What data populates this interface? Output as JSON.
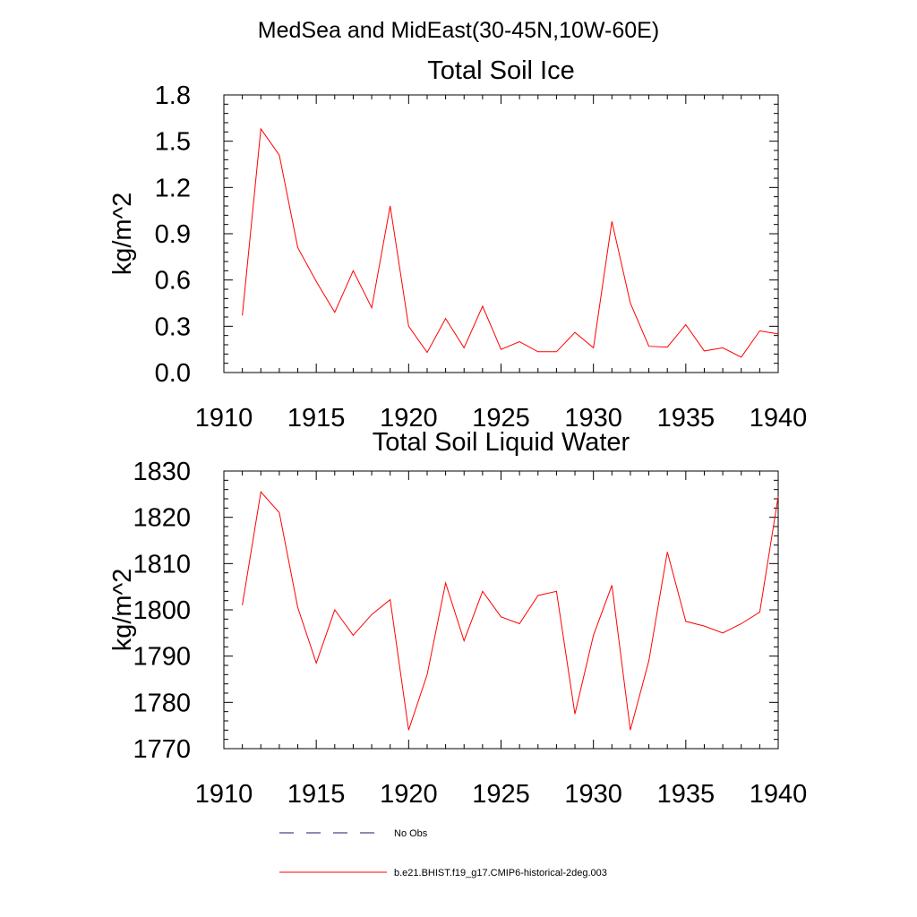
{
  "figure": {
    "title": "MedSea and MidEast(30-45N,10W-60E)"
  },
  "chart_data": [
    {
      "type": "line",
      "title": "Total Soil Ice",
      "xlabel": "",
      "ylabel": "kg/m^2",
      "xlim": [
        1910,
        1940
      ],
      "ylim": [
        0.0,
        1.8
      ],
      "xticks": [
        1910,
        1915,
        1920,
        1925,
        1930,
        1935,
        1940
      ],
      "yticks": [
        "0.0",
        "0.3",
        "0.6",
        "0.9",
        "1.2",
        "1.5",
        "1.8"
      ],
      "series": [
        {
          "name": "b.e21.BHIST.f19_g17.CMIP6-historical-2deg.003",
          "color": "#ff0000",
          "x": [
            1911,
            1912,
            1913,
            1914,
            1915,
            1916,
            1917,
            1918,
            1919,
            1920,
            1921,
            1922,
            1923,
            1924,
            1925,
            1926,
            1927,
            1928,
            1929,
            1930,
            1931,
            1932,
            1933,
            1934,
            1935,
            1936,
            1937,
            1938,
            1939,
            1940
          ],
          "values": [
            0.37,
            1.58,
            1.41,
            0.81,
            0.59,
            0.39,
            0.66,
            0.42,
            1.08,
            0.3,
            0.13,
            0.35,
            0.16,
            0.43,
            0.15,
            0.2,
            0.135,
            0.135,
            0.26,
            0.16,
            0.98,
            0.45,
            0.17,
            0.165,
            0.31,
            0.14,
            0.16,
            0.1,
            0.27,
            0.25
          ]
        }
      ]
    },
    {
      "type": "line",
      "title": "Total Soil Liquid Water",
      "xlabel": "",
      "ylabel": "kg/m^2",
      "xlim": [
        1910,
        1940
      ],
      "ylim": [
        1770,
        1830
      ],
      "xticks": [
        1910,
        1915,
        1920,
        1925,
        1930,
        1935,
        1940
      ],
      "yticks": [
        "1770",
        "1780",
        "1790",
        "1800",
        "1810",
        "1820",
        "1830"
      ],
      "series": [
        {
          "name": "b.e21.BHIST.f19_g17.CMIP6-historical-2deg.003",
          "color": "#ff0000",
          "x": [
            1911,
            1912,
            1913,
            1914,
            1915,
            1916,
            1917,
            1918,
            1919,
            1920,
            1921,
            1922,
            1923,
            1924,
            1925,
            1926,
            1927,
            1928,
            1929,
            1930,
            1931,
            1932,
            1933,
            1934,
            1935,
            1936,
            1937,
            1938,
            1939,
            1940
          ],
          "values": [
            1801,
            1825.5,
            1821,
            1800.5,
            1788.5,
            1800,
            1794.5,
            1799,
            1802.2,
            1774,
            1786,
            1805.8,
            1793.3,
            1804,
            1798.5,
            1797,
            1803.1,
            1804,
            1777.5,
            1794.5,
            1805.3,
            1774,
            1789,
            1812.5,
            1797.5,
            1796.5,
            1795,
            1797,
            1799.5,
            1824.5
          ]
        }
      ]
    }
  ],
  "legend": {
    "items": [
      {
        "label": "No Obs",
        "color": "#1a1a6e",
        "style": "dashed"
      },
      {
        "label": "b.e21.BHIST.f19_g17.CMIP6-historical-2deg.003",
        "color": "#ff0000",
        "style": "solid"
      }
    ]
  }
}
